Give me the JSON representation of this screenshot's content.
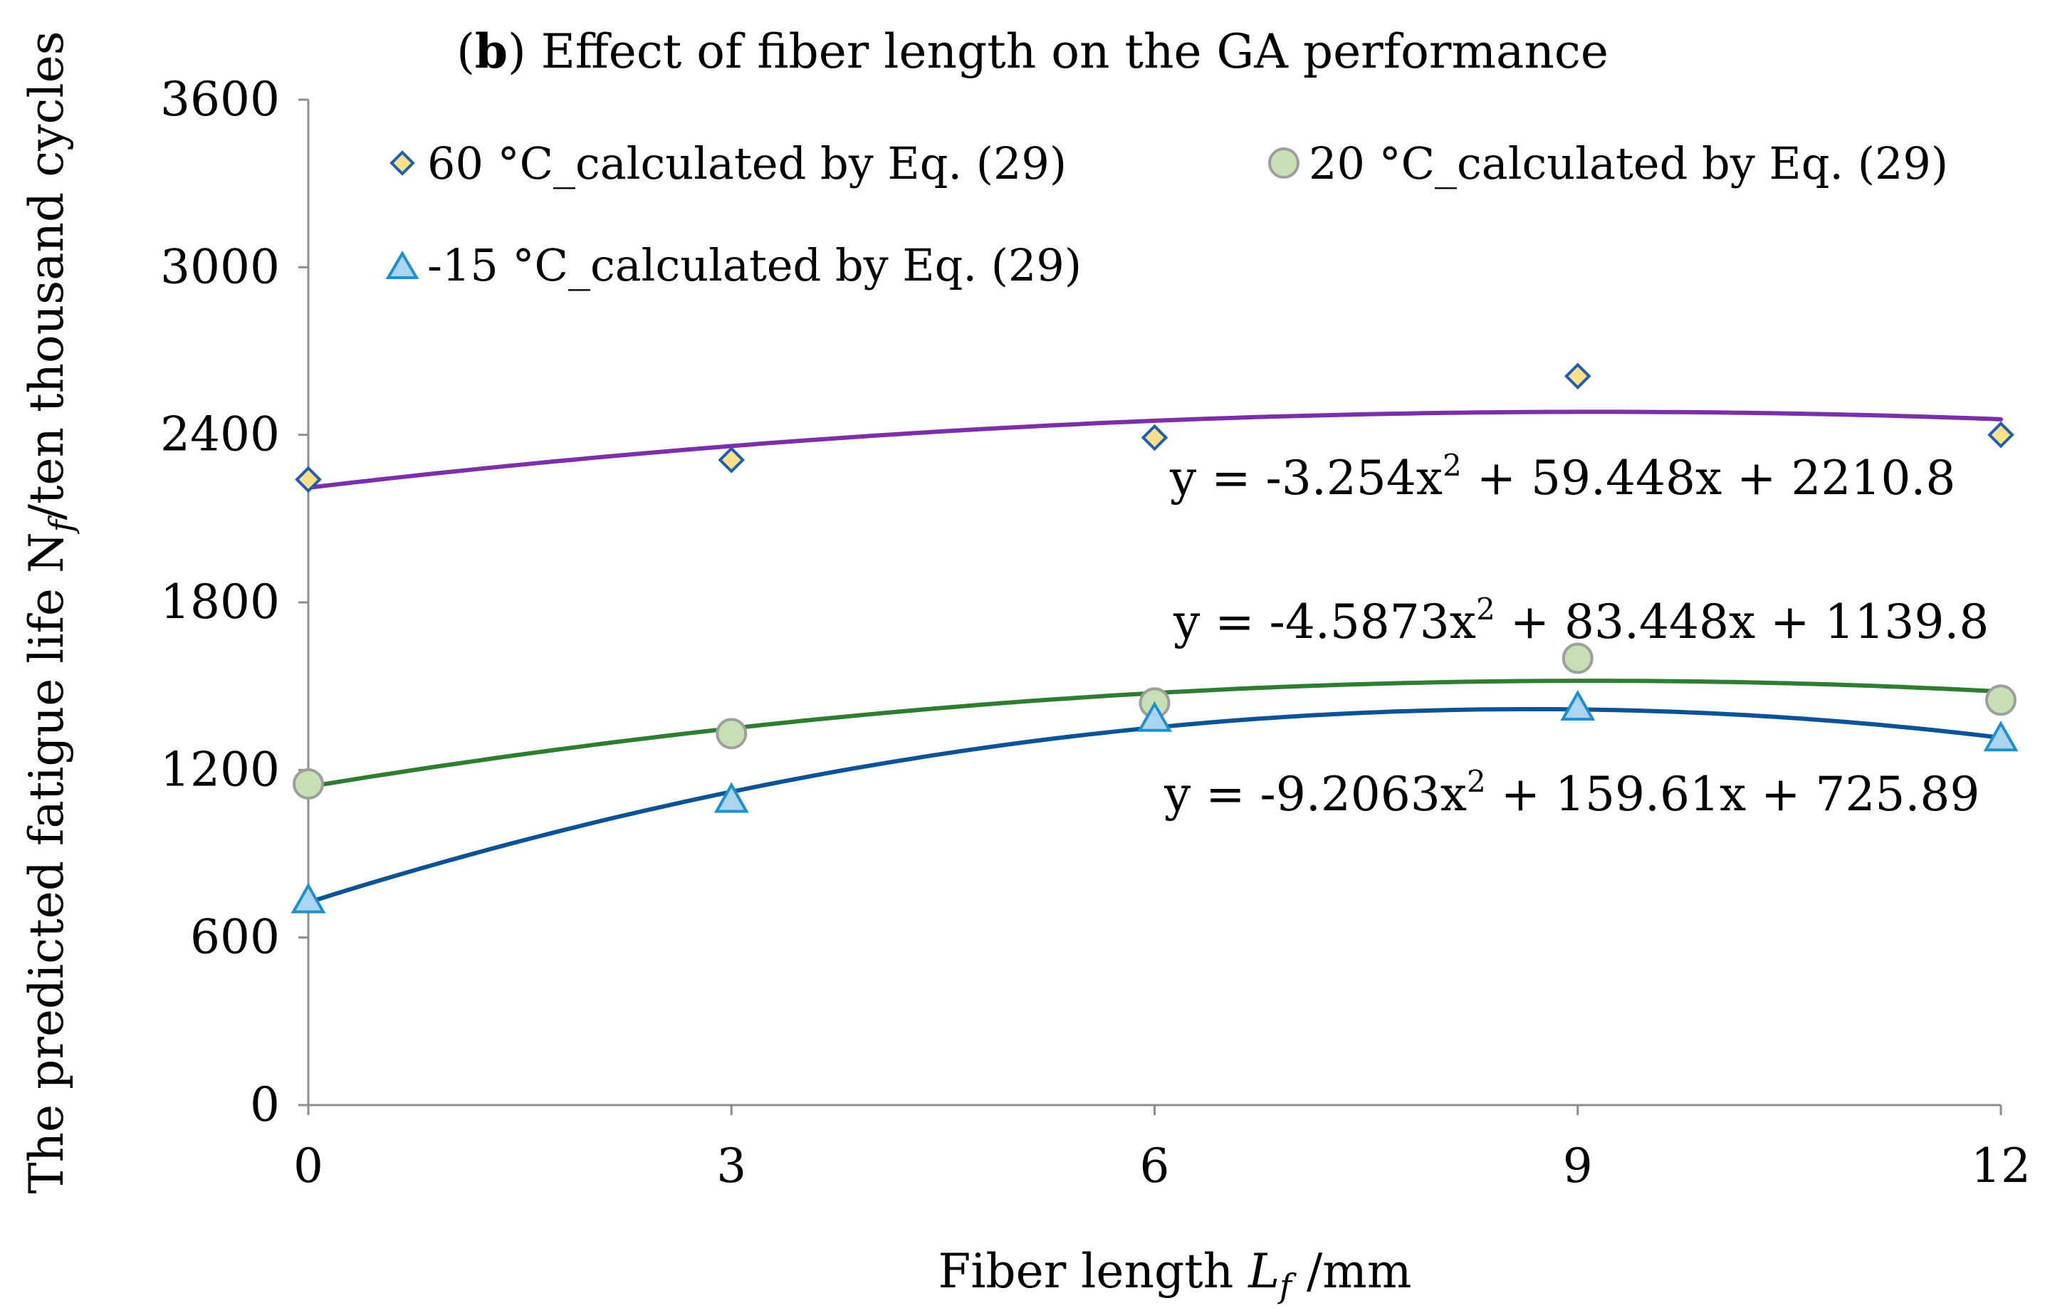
{
  "chart_data": {
    "type": "scatter",
    "title": {
      "prefix": "(",
      "bold": "b",
      "rest": ") Effect of  fiber length on the GA performance"
    },
    "xlabel": {
      "main": "Fiber length ",
      "var": "L",
      "sub": "f",
      "rest": " /mm"
    },
    "ylabel": {
      "main": "The predicted fatigue life N",
      "sub": "f",
      "rest": "/ten thousand cycles"
    },
    "x_ticks": [
      "0",
      "3",
      "6",
      "9",
      "12"
    ],
    "y_ticks": [
      "0",
      "600",
      "1200",
      "1800",
      "2400",
      "3000",
      "3600"
    ],
    "xlim": [
      0,
      12
    ],
    "ylim": [
      0,
      3600
    ],
    "grid": false,
    "legend_position": "top-left",
    "series": [
      {
        "name": "60 °C_calculated by Eq. (29)",
        "marker": "diamond",
        "fill": "#FFE08A",
        "stroke": "#1F5FB0",
        "x": [
          0,
          3,
          6,
          9,
          12
        ],
        "y": [
          2240,
          2310,
          2390,
          2610,
          2400
        ],
        "trend": {
          "a": -3.254,
          "b": 59.448,
          "c": 2210.8,
          "color": "#7B2FA8"
        },
        "equation": {
          "lead": "y = -3.254x",
          "sup": "2",
          "tail": " + 59.448x + 2210.8"
        }
      },
      {
        "name": "20 °C_calculated by Eq. (29)",
        "marker": "circle",
        "fill": "#C6E0B4",
        "stroke": "#9E9E9E",
        "x": [
          0,
          3,
          6,
          9,
          12
        ],
        "y": [
          1150,
          1330,
          1440,
          1600,
          1450
        ],
        "trend": {
          "a": -4.5873,
          "b": 83.448,
          "c": 1139.8,
          "color": "#2E7D32"
        },
        "equation": {
          "lead": "y = -4.5873x",
          "sup": "2",
          "tail": " + 83.448x + 1139.8"
        }
      },
      {
        "name": "-15 °C_calculated by Eq. (29)",
        "marker": "triangle",
        "fill": "#A9D4F2",
        "stroke": "#1E90D0",
        "x": [
          0,
          3,
          6,
          9,
          12
        ],
        "y": [
          730,
          1090,
          1380,
          1420,
          1310
        ],
        "trend": {
          "a": -9.2063,
          "b": 159.61,
          "c": 725.89,
          "color": "#0B5394"
        },
        "equation": {
          "lead": "y = -9.2063x",
          "sup": "2",
          "tail": " + 159.61x + 725.89"
        }
      }
    ]
  }
}
